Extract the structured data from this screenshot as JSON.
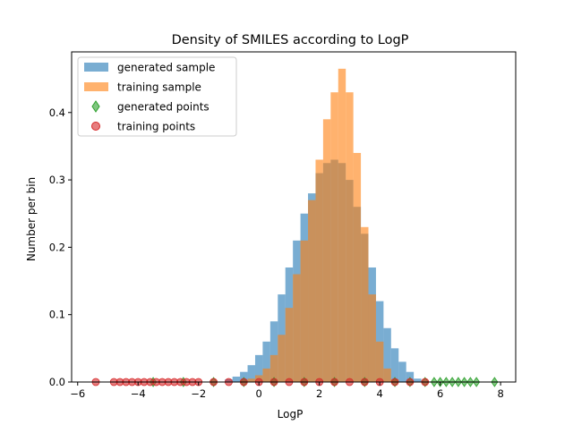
{
  "chart_data": {
    "type": "histogram",
    "title": "Density of SMILES according to LogP",
    "xlabel": "LogP",
    "ylabel": "Number per bin",
    "xlim": [
      -6.2,
      8.5
    ],
    "ylim": [
      0,
      0.49
    ],
    "xticks": [
      -6,
      -4,
      -2,
      0,
      2,
      4,
      6,
      8
    ],
    "xtick_labels": [
      "−6",
      "−4",
      "−2",
      "0",
      "2",
      "4",
      "6",
      "8"
    ],
    "yticks": [
      0.0,
      0.1,
      0.2,
      0.3,
      0.4
    ],
    "ytick_labels": [
      "0.0",
      "0.1",
      "0.2",
      "0.3",
      "0.4"
    ],
    "grid": false,
    "legend_position": "upper-left",
    "series": [
      {
        "name": "generated sample",
        "kind": "histogram",
        "color": "#1f77b4",
        "x": [
          -1.0,
          -0.75,
          -0.5,
          -0.25,
          0.0,
          0.25,
          0.5,
          0.75,
          1.0,
          1.25,
          1.5,
          1.75,
          2.0,
          2.25,
          2.5,
          2.75,
          3.0,
          3.25,
          3.5,
          3.75,
          4.0,
          4.25,
          4.5,
          4.75,
          5.0,
          5.25,
          5.5
        ],
        "values": [
          0.004,
          0.008,
          0.015,
          0.025,
          0.04,
          0.06,
          0.09,
          0.13,
          0.17,
          0.21,
          0.25,
          0.28,
          0.31,
          0.325,
          0.33,
          0.325,
          0.3,
          0.26,
          0.22,
          0.17,
          0.12,
          0.08,
          0.05,
          0.03,
          0.015,
          0.005,
          0.0
        ]
      },
      {
        "name": "training sample",
        "kind": "histogram",
        "color": "#ff7f0e",
        "x": [
          -0.5,
          -0.25,
          0.0,
          0.25,
          0.5,
          0.75,
          1.0,
          1.25,
          1.5,
          1.75,
          2.0,
          2.25,
          2.5,
          2.75,
          3.0,
          3.25,
          3.5,
          3.75,
          4.0,
          4.25,
          4.5
        ],
        "values": [
          0.002,
          0.005,
          0.01,
          0.02,
          0.04,
          0.07,
          0.11,
          0.16,
          0.21,
          0.27,
          0.33,
          0.39,
          0.43,
          0.465,
          0.43,
          0.34,
          0.23,
          0.13,
          0.06,
          0.02,
          0.004
        ]
      },
      {
        "name": "generated points",
        "kind": "points",
        "marker": "diamond",
        "color": "#2ca02c",
        "x": [
          -3.5,
          -2.5,
          -1.5,
          -0.5,
          0.5,
          1.5,
          2.5,
          3.5,
          4.5,
          5.0,
          5.5,
          5.8,
          6.0,
          6.2,
          6.4,
          6.6,
          6.8,
          7.0,
          7.2,
          7.8
        ],
        "values": [
          0,
          0,
          0,
          0,
          0,
          0,
          0,
          0,
          0,
          0,
          0,
          0,
          0,
          0,
          0,
          0,
          0,
          0,
          0,
          0
        ]
      },
      {
        "name": "training points",
        "kind": "points",
        "marker": "circle",
        "color": "#d62728",
        "x": [
          -5.4,
          -4.8,
          -4.6,
          -4.4,
          -4.2,
          -4.0,
          -3.8,
          -3.6,
          -3.4,
          -3.2,
          -3.0,
          -2.8,
          -2.6,
          -2.4,
          -2.2,
          -2.0,
          -1.5,
          -1.0,
          -0.5,
          0.0,
          0.5,
          1.0,
          1.5,
          2.0,
          2.5,
          3.0,
          3.5,
          4.0,
          4.5,
          5.0,
          5.5
        ],
        "values": [
          0,
          0,
          0,
          0,
          0,
          0,
          0,
          0,
          0,
          0,
          0,
          0,
          0,
          0,
          0,
          0,
          0,
          0,
          0,
          0,
          0,
          0,
          0,
          0,
          0,
          0,
          0,
          0,
          0,
          0,
          0
        ]
      }
    ]
  }
}
